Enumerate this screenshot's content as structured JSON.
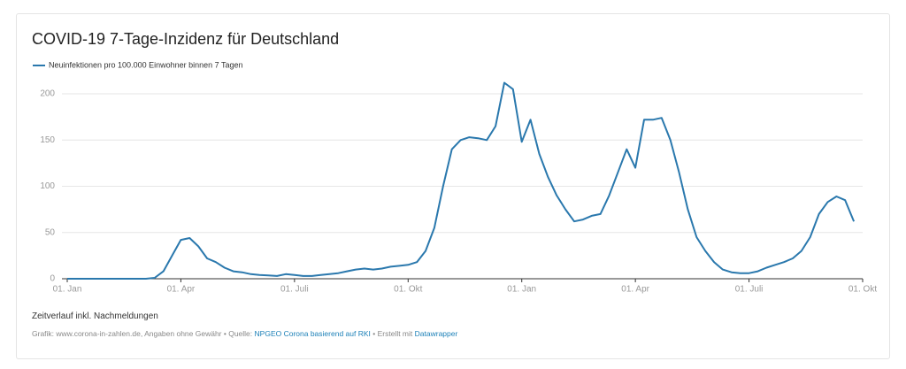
{
  "chart_data": {
    "type": "line",
    "title": "COVID-19 7-Tage-Inzidenz für Deutschland",
    "categories": [
      "01. Jan",
      null,
      null,
      null,
      null,
      null,
      null,
      null,
      null,
      null,
      null,
      null,
      null,
      "01. Apr",
      null,
      null,
      null,
      null,
      null,
      null,
      null,
      null,
      null,
      null,
      null,
      null,
      "01. Juli",
      null,
      null,
      null,
      null,
      null,
      null,
      null,
      null,
      null,
      null,
      null,
      null,
      "01. Okt",
      null,
      null,
      null,
      null,
      null,
      null,
      null,
      null,
      null,
      null,
      null,
      null,
      "01. Jan",
      null,
      null,
      null,
      null,
      null,
      null,
      null,
      null,
      null,
      null,
      null,
      null,
      "01. Apr",
      null,
      null,
      null,
      null,
      null,
      null,
      null,
      null,
      null,
      null,
      null,
      null,
      "01. Juli",
      null,
      null,
      null,
      null,
      null,
      null,
      null,
      null,
      null,
      null,
      null,
      null,
      "01. Okt"
    ],
    "series": [
      {
        "name": "Neuinfektionen pro 100.000 Einwohner binnen 7 Tagen",
        "color": "#2a78ad",
        "values": [
          0,
          0,
          0,
          0,
          0,
          0,
          0,
          0,
          0,
          0,
          1,
          8,
          25,
          42,
          44,
          35,
          22,
          18,
          12,
          8,
          7,
          5,
          4,
          3.5,
          3,
          5,
          4,
          3,
          3,
          4,
          5,
          6,
          8,
          10,
          11,
          10,
          11,
          13,
          14,
          15,
          18,
          30,
          55,
          100,
          140,
          150,
          153,
          152,
          150,
          165,
          212,
          205,
          148,
          172,
          135,
          110,
          90,
          75,
          62,
          64,
          68,
          70,
          90,
          115,
          140,
          120,
          172,
          172,
          174,
          150,
          115,
          75,
          45,
          30,
          18,
          10,
          7,
          6,
          6,
          8,
          12,
          15,
          18,
          22,
          30,
          45,
          70,
          83,
          89,
          85,
          62,
          null
        ]
      }
    ],
    "ylim": [
      0,
      200
    ],
    "yticks": [
      0,
      50,
      100,
      150,
      200
    ],
    "grid": true,
    "note": "Zeitverlauf inkl. Nachmeldungen",
    "source": {
      "prefix": "Grafik: www.corona-in-zahlen.de, Angaben ohne Gewähr • Quelle:",
      "link": "NPGEO Corona basierend auf RKI",
      "middle": "• Erstellt mit",
      "tool": "Datawrapper"
    }
  }
}
